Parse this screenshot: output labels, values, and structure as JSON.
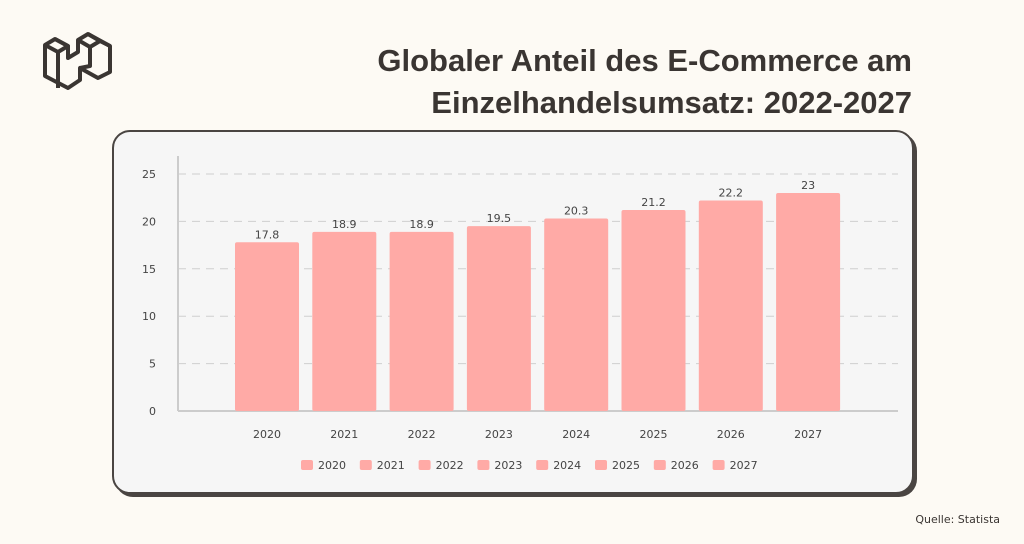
{
  "title_line1": "Globaler Anteil des E-Commerce am",
  "title_line2": "Einzelhandelsumsatz: 2022-2027",
  "source": "Quelle: Statista",
  "colors": {
    "bar": "#ffaaa6",
    "text": "#3a3532"
  },
  "chart_data": {
    "type": "bar",
    "categories": [
      "2020",
      "2021",
      "2022",
      "2023",
      "2024",
      "2025",
      "2026",
      "2027"
    ],
    "values": [
      17.8,
      18.9,
      18.9,
      19.5,
      20.3,
      21.2,
      22.2,
      23
    ],
    "value_labels": [
      "17.8",
      "18.9",
      "18.9",
      "19.5",
      "20.3",
      "21.2",
      "22.2",
      "23"
    ],
    "yticks": [
      "0",
      "5",
      "10",
      "15",
      "20",
      "25"
    ],
    "ylim": [
      0,
      25
    ],
    "grid": true,
    "legend": [
      "2020",
      "2021",
      "2022",
      "2023",
      "2024",
      "2025",
      "2026",
      "2027"
    ],
    "legend_placement": "bottom"
  }
}
